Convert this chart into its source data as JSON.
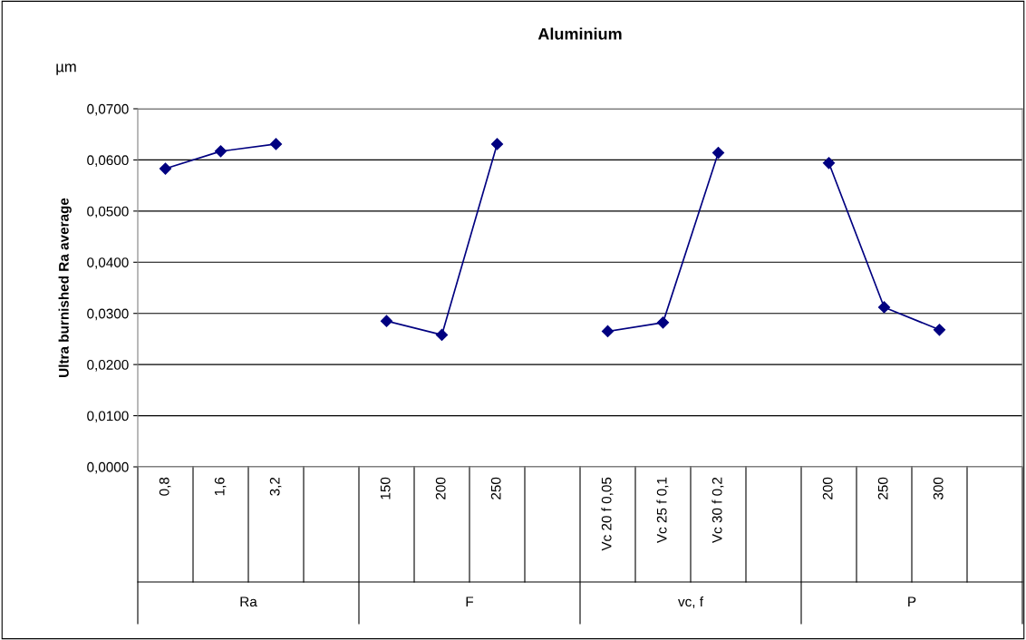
{
  "chart_data": {
    "type": "line",
    "title": "Aluminium",
    "ylabel": "Ultra burnished Ra average",
    "categories": [
      "0,8",
      "1,6",
      "3,2",
      null,
      "150",
      "200",
      "250",
      null,
      "Vc 20 f 0,05",
      "Vc 25 f 0,1",
      "Vc 30 f 0,2",
      null,
      "200",
      "250",
      "300",
      null
    ],
    "series": [
      {
        "color": "#000080",
        "values": [
          0.0583,
          0.0617,
          0.0631,
          null,
          0.0285,
          0.0258,
          0.0631,
          null,
          0.0265,
          0.0282,
          0.0614,
          null,
          0.0594,
          0.0312,
          0.0268,
          null
        ]
      }
    ],
    "ylim": [
      0,
      0.07
    ],
    "yticks": [
      {
        "value": 0,
        "label": "0,0000"
      },
      {
        "value": 0.01,
        "label": "0,0100"
      },
      {
        "value": 0.02,
        "label": "0,0200"
      },
      {
        "value": 0.03,
        "label": "0,0300"
      },
      {
        "value": 0.04,
        "label": "0,0400"
      },
      {
        "value": 0.05,
        "label": "0,0500"
      },
      {
        "value": 0.06,
        "label": "0,0600"
      },
      {
        "value": 0.07,
        "label": "0,0700"
      }
    ],
    "grid": "y",
    "marker": "diamond",
    "line_style": "solid",
    "legend": false,
    "annotations": [
      "µm",
      "Ra",
      "F",
      "vc, f",
      "P"
    ]
  }
}
